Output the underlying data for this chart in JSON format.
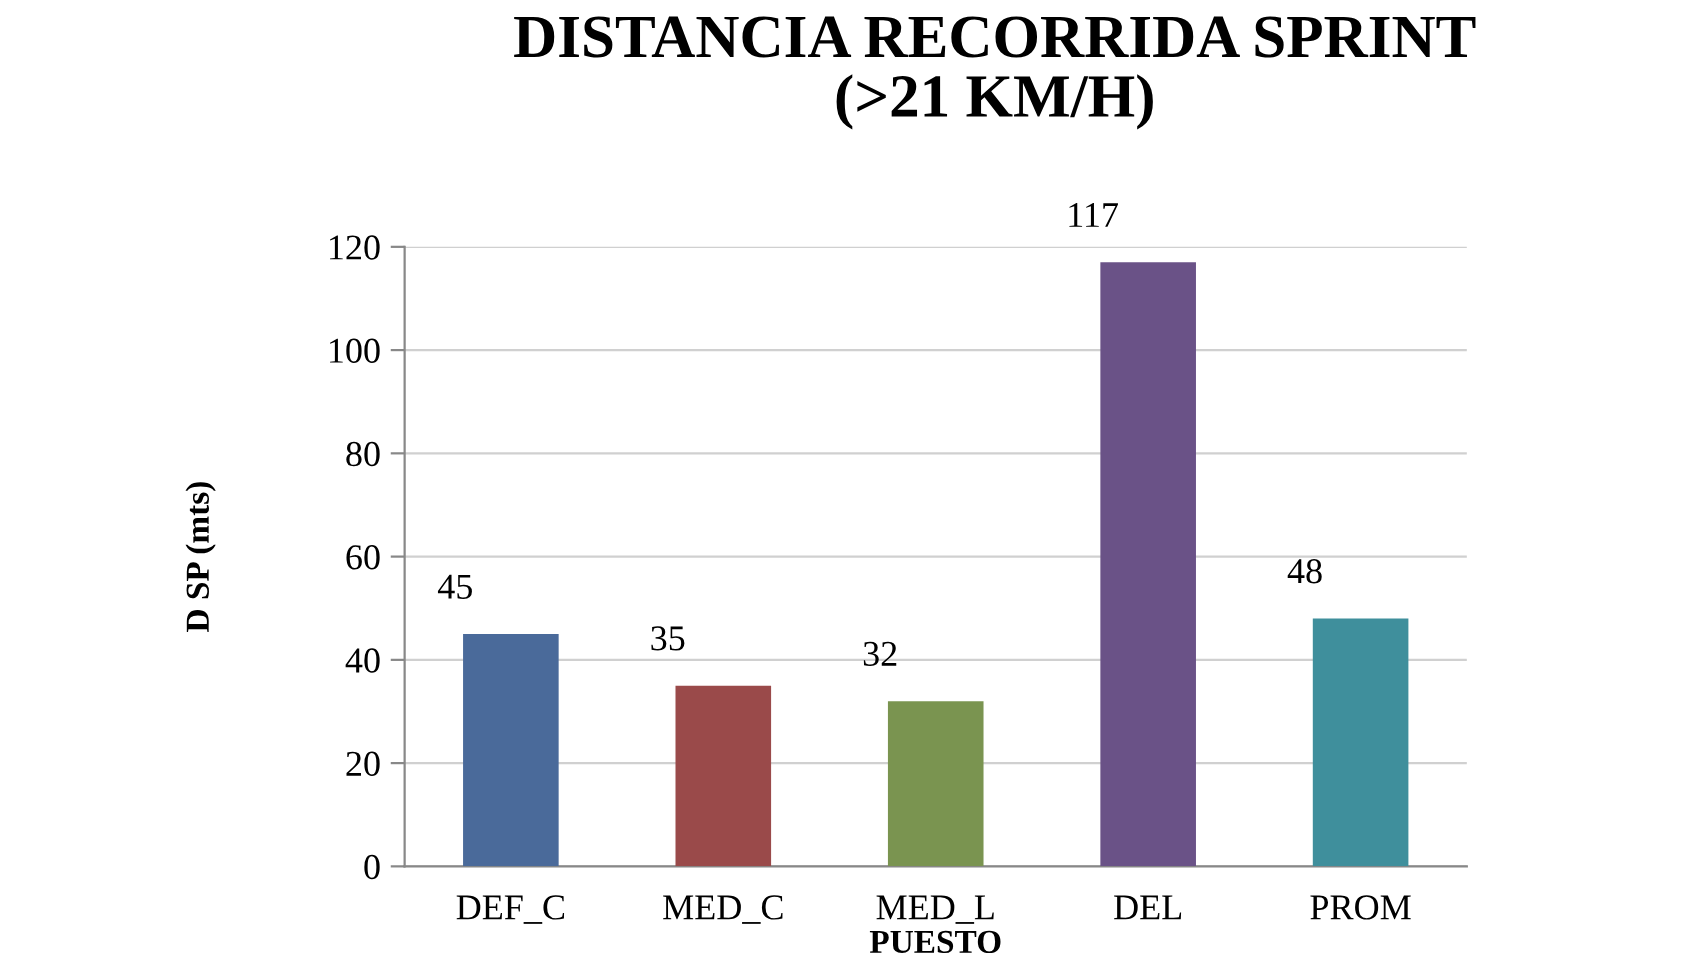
{
  "chart_data": {
    "type": "bar",
    "title": "DISTANCIA RECORRIDA SPRINT\n(>21 KM/H)",
    "xlabel": "PUESTO",
    "ylabel": "D SP (mts)",
    "categories": [
      "DEF_C",
      "MED_C",
      "MED_L",
      "DEL",
      "PROM"
    ],
    "values": [
      45,
      35,
      32,
      117,
      48
    ],
    "colors": [
      "#4a6a9a",
      "#9a4a4a",
      "#7a9450",
      "#6a5287",
      "#3f8f9c"
    ],
    "data_labels": true,
    "ylim": [
      0,
      120
    ],
    "yticks": [
      0,
      20,
      40,
      60,
      80,
      100,
      120
    ],
    "grid": "y",
    "legend": false
  }
}
